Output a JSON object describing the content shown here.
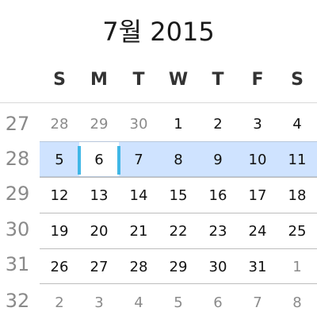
{
  "calendar": {
    "title": "7월 2015",
    "weekdays": [
      "S",
      "M",
      "T",
      "W",
      "T",
      "F",
      "S"
    ],
    "weeks": [
      {
        "week_number": "27",
        "days": [
          {
            "label": "28",
            "state": "other"
          },
          {
            "label": "29",
            "state": "other"
          },
          {
            "label": "30",
            "state": "other"
          },
          {
            "label": "1",
            "state": "current"
          },
          {
            "label": "2",
            "state": "current"
          },
          {
            "label": "3",
            "state": "current"
          },
          {
            "label": "4",
            "state": "current"
          }
        ]
      },
      {
        "week_number": "28",
        "days": [
          {
            "label": "5",
            "state": "current"
          },
          {
            "label": "6",
            "state": "current"
          },
          {
            "label": "7",
            "state": "current"
          },
          {
            "label": "8",
            "state": "current"
          },
          {
            "label": "9",
            "state": "current"
          },
          {
            "label": "10",
            "state": "current"
          },
          {
            "label": "11",
            "state": "current"
          }
        ]
      },
      {
        "week_number": "29",
        "days": [
          {
            "label": "12",
            "state": "current"
          },
          {
            "label": "13",
            "state": "current"
          },
          {
            "label": "14",
            "state": "current"
          },
          {
            "label": "15",
            "state": "current"
          },
          {
            "label": "16",
            "state": "current"
          },
          {
            "label": "17",
            "state": "current"
          },
          {
            "label": "18",
            "state": "current"
          }
        ]
      },
      {
        "week_number": "30",
        "days": [
          {
            "label": "19",
            "state": "current"
          },
          {
            "label": "20",
            "state": "current"
          },
          {
            "label": "21",
            "state": "current"
          },
          {
            "label": "22",
            "state": "current"
          },
          {
            "label": "23",
            "state": "current"
          },
          {
            "label": "24",
            "state": "current"
          },
          {
            "label": "25",
            "state": "current"
          }
        ]
      },
      {
        "week_number": "31",
        "days": [
          {
            "label": "26",
            "state": "current"
          },
          {
            "label": "27",
            "state": "current"
          },
          {
            "label": "28",
            "state": "current"
          },
          {
            "label": "29",
            "state": "current"
          },
          {
            "label": "30",
            "state": "current"
          },
          {
            "label": "31",
            "state": "current"
          },
          {
            "label": "1",
            "state": "other"
          }
        ]
      },
      {
        "week_number": "32",
        "days": [
          {
            "label": "2",
            "state": "other"
          },
          {
            "label": "3",
            "state": "other"
          },
          {
            "label": "4",
            "state": "other"
          },
          {
            "label": "5",
            "state": "other"
          },
          {
            "label": "6",
            "state": "other"
          },
          {
            "label": "7",
            "state": "other"
          },
          {
            "label": "8",
            "state": "other"
          }
        ]
      }
    ],
    "selected_week_number": "28",
    "selected_day": "6",
    "colors": {
      "selected_week_fill": "#cfe3ff",
      "selected_day_marker": "#40b7e6",
      "outside_month_text": "#8b8b8b"
    }
  }
}
